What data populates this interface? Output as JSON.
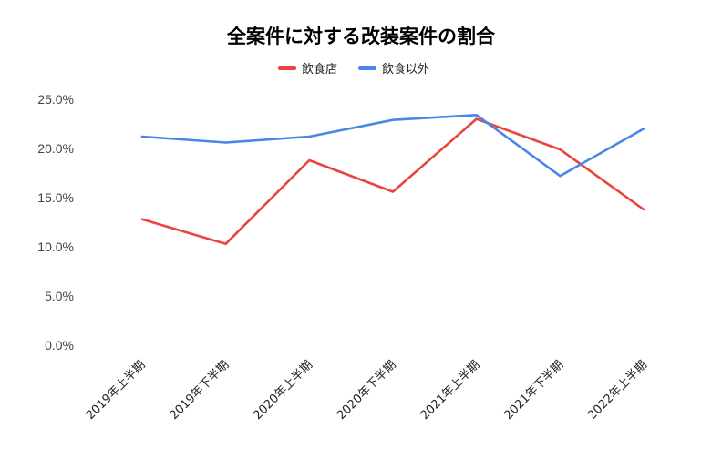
{
  "chart_data": {
    "type": "line",
    "title": "全案件に対する改装案件の割合",
    "xlabel": "",
    "ylabel": "",
    "categories": [
      "2019年上半期",
      "2019年下半期",
      "2020年上半期",
      "2020年下半期",
      "2021年上半期",
      "2021年下半期",
      "2022年上半期"
    ],
    "series": [
      {
        "name": "飲食店",
        "color": "#e8453c",
        "values": [
          12.8,
          10.3,
          18.8,
          15.6,
          23.0,
          19.9,
          13.8
        ]
      },
      {
        "name": "飲食以外",
        "color": "#4a86e8",
        "values": [
          21.2,
          20.6,
          21.2,
          22.9,
          23.4,
          17.2,
          22.0
        ]
      }
    ],
    "ylim": [
      0,
      25
    ],
    "yticks": [
      "0.0%",
      "5.0%",
      "10.0%",
      "15.0%",
      "20.0%",
      "25.0%"
    ],
    "grid": false,
    "legend_position": "top"
  }
}
